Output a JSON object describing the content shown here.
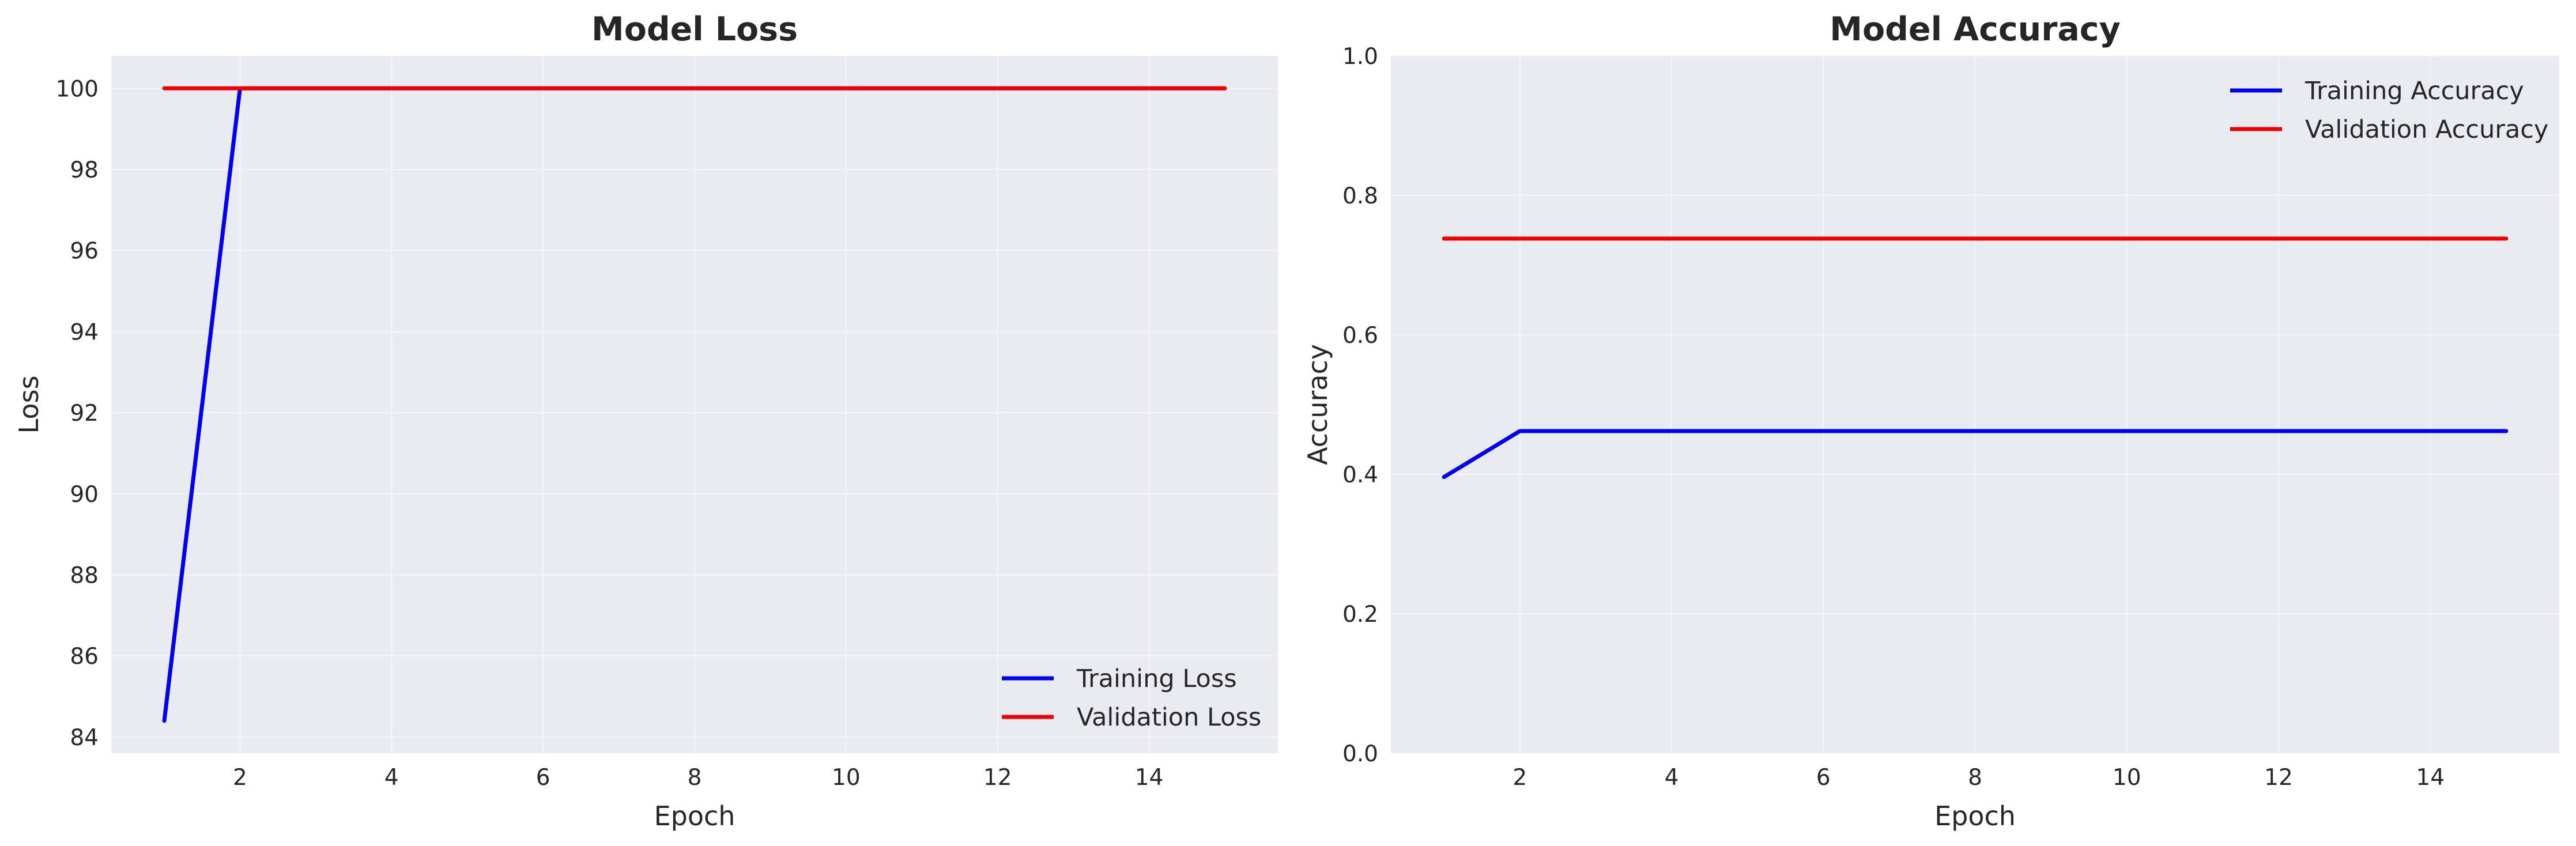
{
  "chart_data": [
    {
      "type": "line",
      "title": "Model Loss",
      "xlabel": "Epoch",
      "ylabel": "Loss",
      "x": [
        1,
        2,
        3,
        4,
        5,
        6,
        7,
        8,
        9,
        10,
        11,
        12,
        13,
        14,
        15
      ],
      "series": [
        {
          "name": "Training Loss",
          "color": "#0000ee",
          "values": [
            84.4,
            100,
            100,
            100,
            100,
            100,
            100,
            100,
            100,
            100,
            100,
            100,
            100,
            100,
            100
          ]
        },
        {
          "name": "Validation Loss",
          "color": "#ee0000",
          "values": [
            100,
            100,
            100,
            100,
            100,
            100,
            100,
            100,
            100,
            100,
            100,
            100,
            100,
            100,
            100
          ]
        }
      ],
      "xlim": [
        0.3,
        15.7
      ],
      "ylim": [
        83.6,
        100.8
      ],
      "xticks": [
        2,
        4,
        6,
        8,
        10,
        12,
        14
      ],
      "yticks": [
        84,
        86,
        88,
        90,
        92,
        94,
        96,
        98,
        100
      ],
      "grid": true,
      "legend_position": "lower-right"
    },
    {
      "type": "line",
      "title": "Model Accuracy",
      "xlabel": "Epoch",
      "ylabel": "Accuracy",
      "x": [
        1,
        2,
        3,
        4,
        5,
        6,
        7,
        8,
        9,
        10,
        11,
        12,
        13,
        14,
        15
      ],
      "series": [
        {
          "name": "Training Accuracy",
          "color": "#0000ee",
          "values": [
            0.396,
            0.462,
            0.462,
            0.462,
            0.462,
            0.462,
            0.462,
            0.462,
            0.462,
            0.462,
            0.462,
            0.462,
            0.462,
            0.462,
            0.462
          ]
        },
        {
          "name": "Validation Accuracy",
          "color": "#ee0000",
          "values": [
            0.738,
            0.738,
            0.738,
            0.738,
            0.738,
            0.738,
            0.738,
            0.738,
            0.738,
            0.738,
            0.738,
            0.738,
            0.738,
            0.738,
            0.738
          ]
        }
      ],
      "xlim": [
        0.3,
        15.7
      ],
      "ylim": [
        0.0,
        1.0
      ],
      "xticks": [
        2,
        4,
        6,
        8,
        10,
        12,
        14
      ],
      "yticks": [
        0.0,
        0.2,
        0.4,
        0.6,
        0.8,
        1.0
      ],
      "yticklabels": [
        "0.0",
        "0.2",
        "0.4",
        "0.6",
        "0.8",
        "1.0"
      ],
      "grid": true,
      "legend_position": "upper-right"
    }
  ]
}
